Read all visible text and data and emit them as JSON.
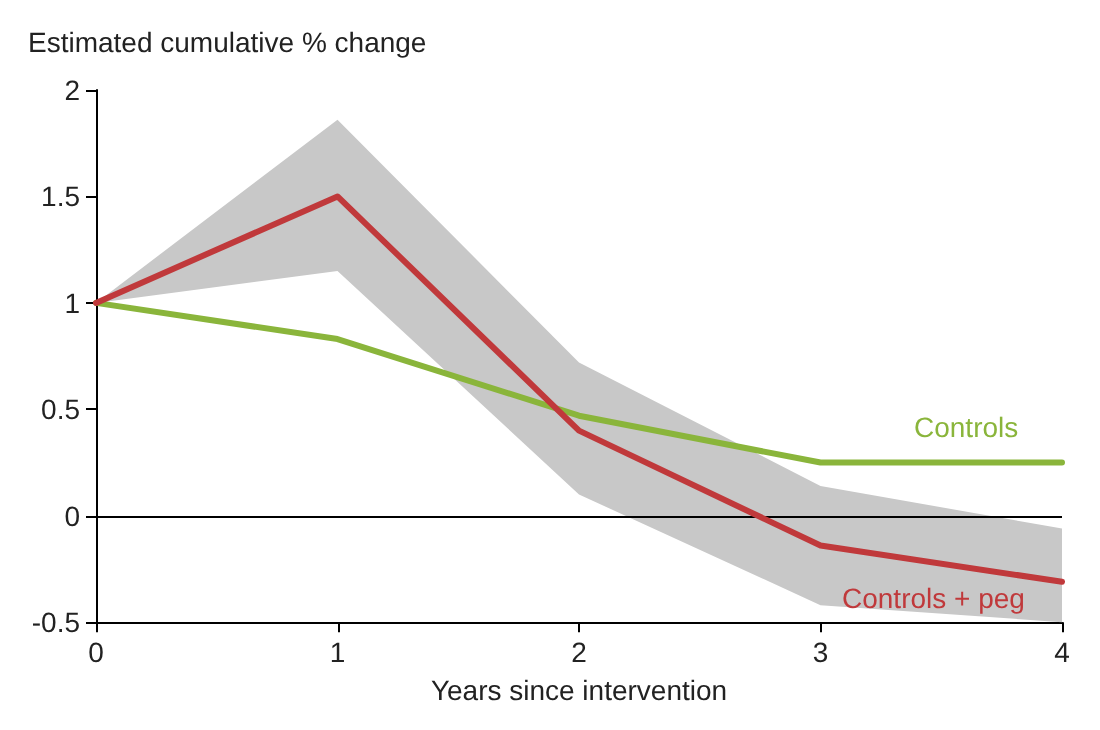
{
  "chart_data": {
    "type": "line",
    "ylabel": "Estimated cumulative % change",
    "xlabel": "Years since intervention",
    "x": [
      0,
      1,
      2,
      3,
      4
    ],
    "series": [
      {
        "name": "Controls",
        "color": "#8ab53b",
        "values": [
          1,
          0.83,
          0.47,
          0.25,
          0.25
        ]
      },
      {
        "name": "Controls + peg",
        "color": "#c0393b",
        "values": [
          1,
          1.5,
          0.4,
          -0.14,
          -0.31
        ],
        "lower": [
          1,
          1.15,
          0.1,
          -0.42,
          -0.5
        ],
        "upper": [
          1,
          1.86,
          0.72,
          0.14,
          -0.06
        ]
      }
    ],
    "xlim": [
      0,
      4
    ],
    "xticks": [
      0,
      1,
      2,
      3,
      4
    ],
    "ylim": [
      -0.5,
      2
    ],
    "yticks": [
      -0.5,
      0,
      0.5,
      1,
      1.5,
      2
    ],
    "ref_lines": [
      {
        "axis": "y",
        "value": 0,
        "color": "#000000"
      }
    ],
    "grid": false,
    "legend": false,
    "marker": "none",
    "line_style": "solid"
  }
}
